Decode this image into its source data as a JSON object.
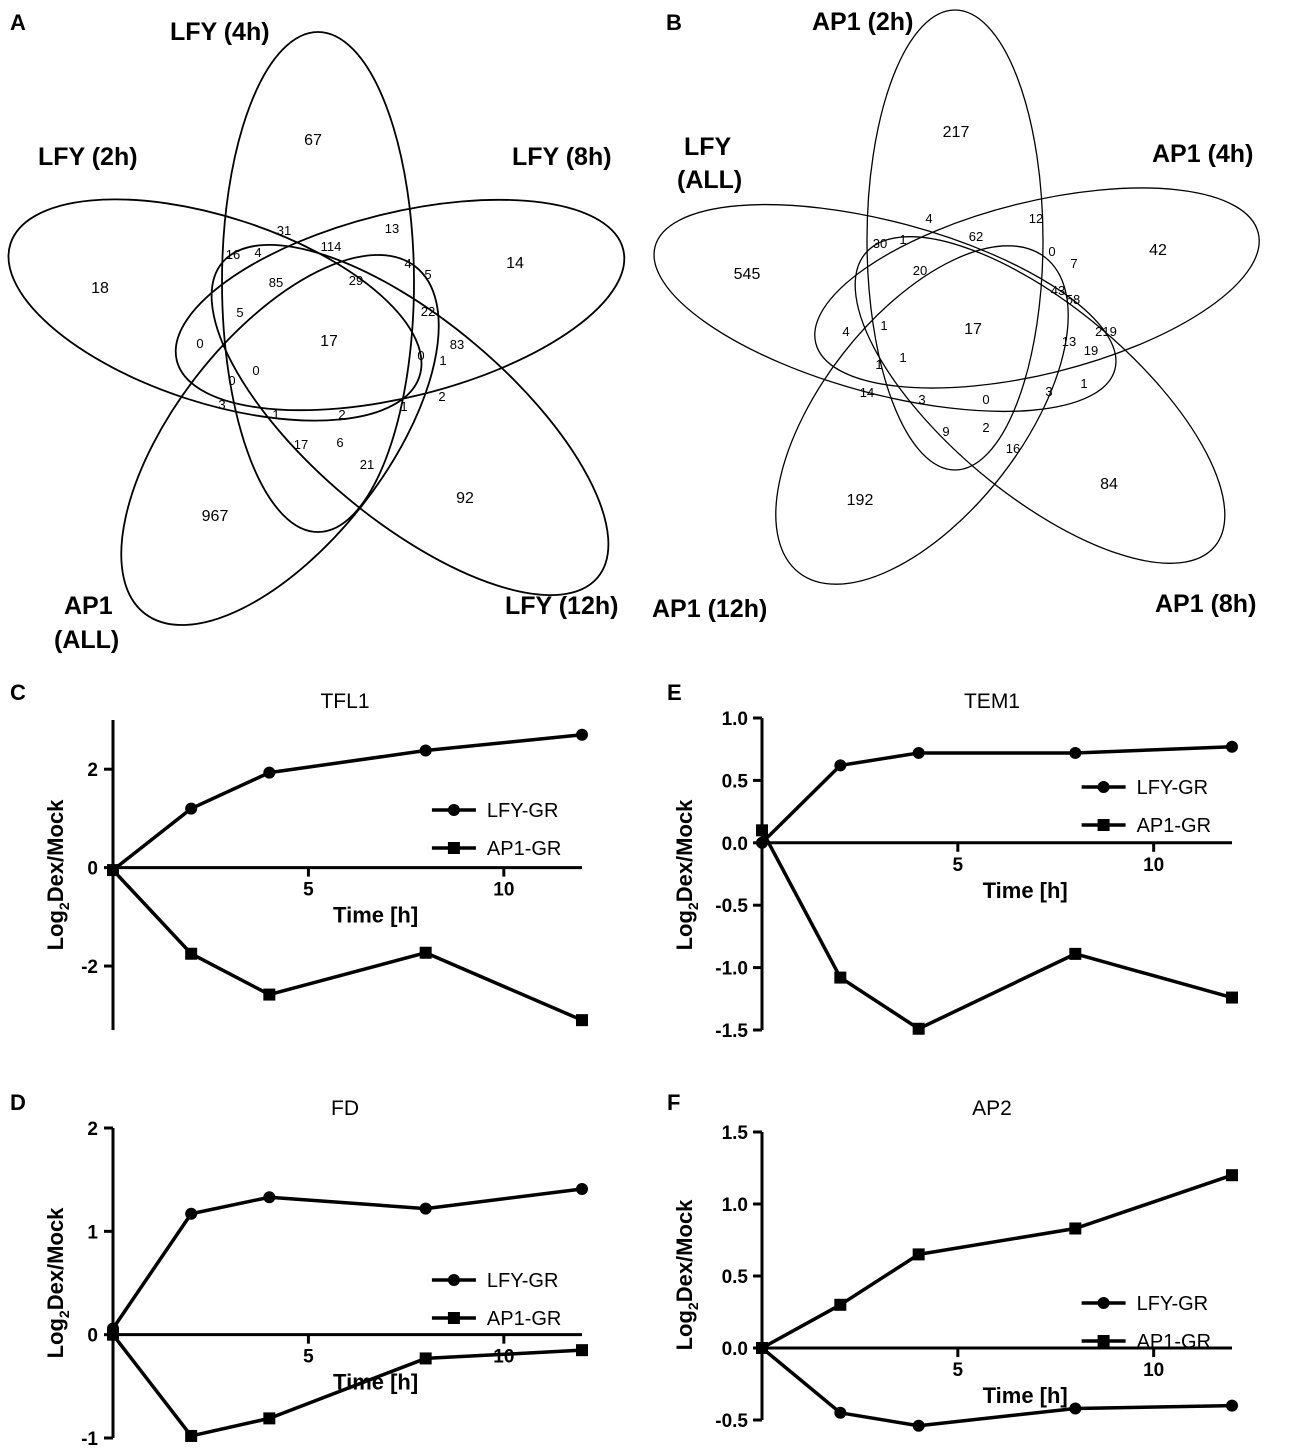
{
  "venn_a": {
    "panel": "A",
    "sets": {
      "lfy4": "LFY (4h)",
      "lfy2": "LFY (2h)",
      "lfy8": "LFY (8h)",
      "lfy12": "LFY (12h)",
      "ap1all_1": "AP1",
      "ap1all_2": "(ALL)"
    },
    "regions": [
      "67",
      "18",
      "14",
      "92",
      "967",
      "31",
      "13",
      "16",
      "4",
      "114",
      "4",
      "5",
      "85",
      "29",
      "22",
      "5",
      "0",
      "17",
      "0",
      "1",
      "83",
      "0",
      "0",
      "3",
      "1",
      "2",
      "1",
      "2",
      "17",
      "6",
      "21"
    ]
  },
  "venn_b": {
    "panel": "B",
    "sets": {
      "ap1_2": "AP1 (2h)",
      "lfyall_1": "LFY",
      "lfyall_2": "(ALL)",
      "ap1_4": "AP1 (4h)",
      "ap1_12": "AP1 (12h)",
      "ap1_8": "AP1 (8h)"
    },
    "regions": [
      "217",
      "545",
      "42",
      "84",
      "192",
      "4",
      "12",
      "30",
      "1",
      "62",
      "20",
      "0",
      "7",
      "43",
      "58",
      "4",
      "1",
      "17",
      "219",
      "13",
      "19",
      "1",
      "1",
      "14",
      "3",
      "0",
      "1",
      "3",
      "9",
      "2",
      "16"
    ]
  },
  "chart_data": [
    {
      "panel": "C",
      "type": "line",
      "title": "TFL1",
      "xlabel": "Time [h]",
      "ylabel": "Log2Dex/Mock",
      "xlim": [
        0,
        12
      ],
      "ylim": [
        -3.3,
        3.0
      ],
      "xticks": [
        "5",
        "10"
      ],
      "yticks": [
        "2",
        "0",
        "-2"
      ],
      "series": [
        {
          "name": "LFY-GR",
          "marker": "circle",
          "points": [
            [
              0,
              -0.05
            ],
            [
              2,
              1.2
            ],
            [
              4,
              1.93
            ],
            [
              8,
              2.38
            ],
            [
              12,
              2.7
            ]
          ]
        },
        {
          "name": "AP1-GR",
          "marker": "square",
          "points": [
            [
              0,
              -0.05
            ],
            [
              2,
              -1.75
            ],
            [
              4,
              -2.58
            ],
            [
              8,
              -1.73
            ],
            [
              12,
              -3.1
            ]
          ]
        }
      ]
    },
    {
      "panel": "D",
      "type": "line",
      "title": "FD",
      "xlabel": "Time [h]",
      "ylabel": "Log2Dex/Mock",
      "xlim": [
        0,
        12
      ],
      "ylim": [
        -1,
        2
      ],
      "xticks": [
        "5",
        "10"
      ],
      "yticks": [
        "2",
        "1",
        "0",
        "-1"
      ],
      "series": [
        {
          "name": "LFY-GR",
          "marker": "circle",
          "points": [
            [
              0,
              0.06
            ],
            [
              2,
              1.17
            ],
            [
              4,
              1.33
            ],
            [
              8,
              1.22
            ],
            [
              12,
              1.41
            ]
          ]
        },
        {
          "name": "AP1-GR",
          "marker": "square",
          "points": [
            [
              0,
              0.0
            ],
            [
              2,
              -0.98
            ],
            [
              4,
              -0.81
            ],
            [
              8,
              -0.23
            ],
            [
              12,
              -0.15
            ]
          ]
        }
      ]
    },
    {
      "panel": "E",
      "type": "line",
      "title": "TEM1",
      "xlabel": "Time [h]",
      "ylabel": "Log2Dex/Mock",
      "xlim": [
        0,
        12
      ],
      "ylim": [
        -1.5,
        1.0
      ],
      "xticks": [
        "5",
        "10"
      ],
      "yticks": [
        "1.0",
        "0.5",
        "0.0",
        "-0.5",
        "-1.0",
        "-1.5"
      ],
      "series": [
        {
          "name": "LFY-GR",
          "marker": "circle",
          "points": [
            [
              0,
              0.0
            ],
            [
              2,
              0.62
            ],
            [
              4,
              0.72
            ],
            [
              8,
              0.72
            ],
            [
              12,
              0.77
            ]
          ]
        },
        {
          "name": "AP1-GR",
          "marker": "square",
          "points": [
            [
              0,
              0.1
            ],
            [
              2,
              -1.08
            ],
            [
              4,
              -1.49
            ],
            [
              8,
              -0.89
            ],
            [
              12,
              -1.24
            ]
          ]
        }
      ]
    },
    {
      "panel": "F",
      "type": "line",
      "title": "AP2",
      "xlabel": "Time [h]",
      "ylabel": "Log2Dex/Mock",
      "xlim": [
        0,
        12
      ],
      "ylim": [
        -0.5,
        1.5
      ],
      "xticks": [
        "5",
        "10"
      ],
      "yticks": [
        "1.5",
        "1.0",
        "0.5",
        "0.0",
        "-0.5"
      ],
      "series": [
        {
          "name": "LFY-GR",
          "marker": "circle",
          "points": [
            [
              0,
              0.0
            ],
            [
              2,
              -0.45
            ],
            [
              4,
              -0.54
            ],
            [
              8,
              -0.42
            ],
            [
              12,
              -0.4
            ]
          ]
        },
        {
          "name": "AP1-GR",
          "marker": "square",
          "points": [
            [
              0,
              0.0
            ],
            [
              2,
              0.3
            ],
            [
              4,
              0.65
            ],
            [
              8,
              0.83
            ],
            [
              12,
              1.2
            ]
          ]
        }
      ]
    }
  ]
}
